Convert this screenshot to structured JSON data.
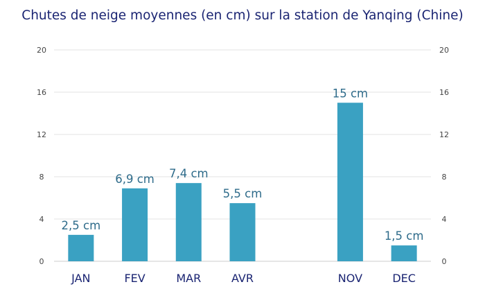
{
  "chart_data": {
    "type": "bar",
    "title": "Chutes de neige moyennes (en cm) sur la station de Yanqing (Chine)",
    "categories": [
      "JAN",
      "FEV",
      "MAR",
      "AVR",
      "",
      "NOV",
      "DEC"
    ],
    "values": [
      2.5,
      6.9,
      7.4,
      5.5,
      null,
      15,
      1.5
    ],
    "data_labels": [
      "2,5 cm",
      "6,9 cm",
      "7,4 cm",
      "5,5 cm",
      "",
      "15 cm",
      "1,5 cm"
    ],
    "xlabel": "",
    "ylabel": "",
    "ylim": [
      0,
      20
    ],
    "yticks": [
      0,
      4,
      8,
      12,
      16,
      20
    ],
    "ytick_labels": [
      "0",
      "4",
      "8",
      "12",
      "16",
      "20"
    ],
    "y_axis_both_sides": true,
    "grid": true,
    "legend": "none",
    "colors": {
      "bar": "#3aa1c2",
      "title": "#1a2472",
      "category_label": "#1a2472",
      "data_label": "#2e6b8a",
      "tick_label": "#444444",
      "grid": "#e3e3e3"
    }
  }
}
